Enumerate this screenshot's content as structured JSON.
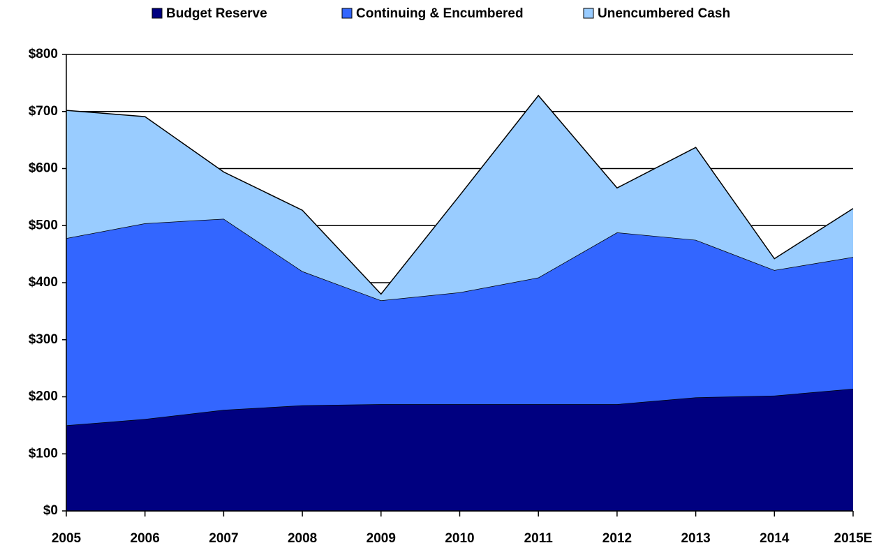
{
  "chart_data": {
    "type": "stacked_area",
    "categories": [
      "2005",
      "2006",
      "2007",
      "2008",
      "2009",
      "2010",
      "2011",
      "2012",
      "2013",
      "2014",
      "2015E"
    ],
    "series": [
      {
        "name": "Budget Reserve",
        "color": "#000080",
        "values": [
          150,
          161,
          177,
          185,
          187,
          187,
          187,
          187,
          199,
          202,
          214
        ]
      },
      {
        "name": "Continuing & Encumbered",
        "color": "#3366ff",
        "values": [
          328,
          343,
          335,
          235,
          182,
          196,
          222,
          301,
          276,
          220,
          231
        ]
      },
      {
        "name": "Unencumbered Cash",
        "color": "#99ccff",
        "values": [
          224,
          187,
          82,
          107,
          11,
          170,
          319,
          78,
          162,
          20,
          85
        ]
      }
    ],
    "ylim": [
      0,
      800
    ],
    "yticks": [
      {
        "value": 0,
        "label": "$0"
      },
      {
        "value": 100,
        "label": "$100"
      },
      {
        "value": 200,
        "label": "$200"
      },
      {
        "value": 300,
        "label": "$300"
      },
      {
        "value": 400,
        "label": "$400"
      },
      {
        "value": 500,
        "label": "$500"
      },
      {
        "value": 600,
        "label": "$600"
      },
      {
        "value": 700,
        "label": "$700"
      },
      {
        "value": 800,
        "label": "$800"
      }
    ],
    "grid": true,
    "legend": "top"
  }
}
